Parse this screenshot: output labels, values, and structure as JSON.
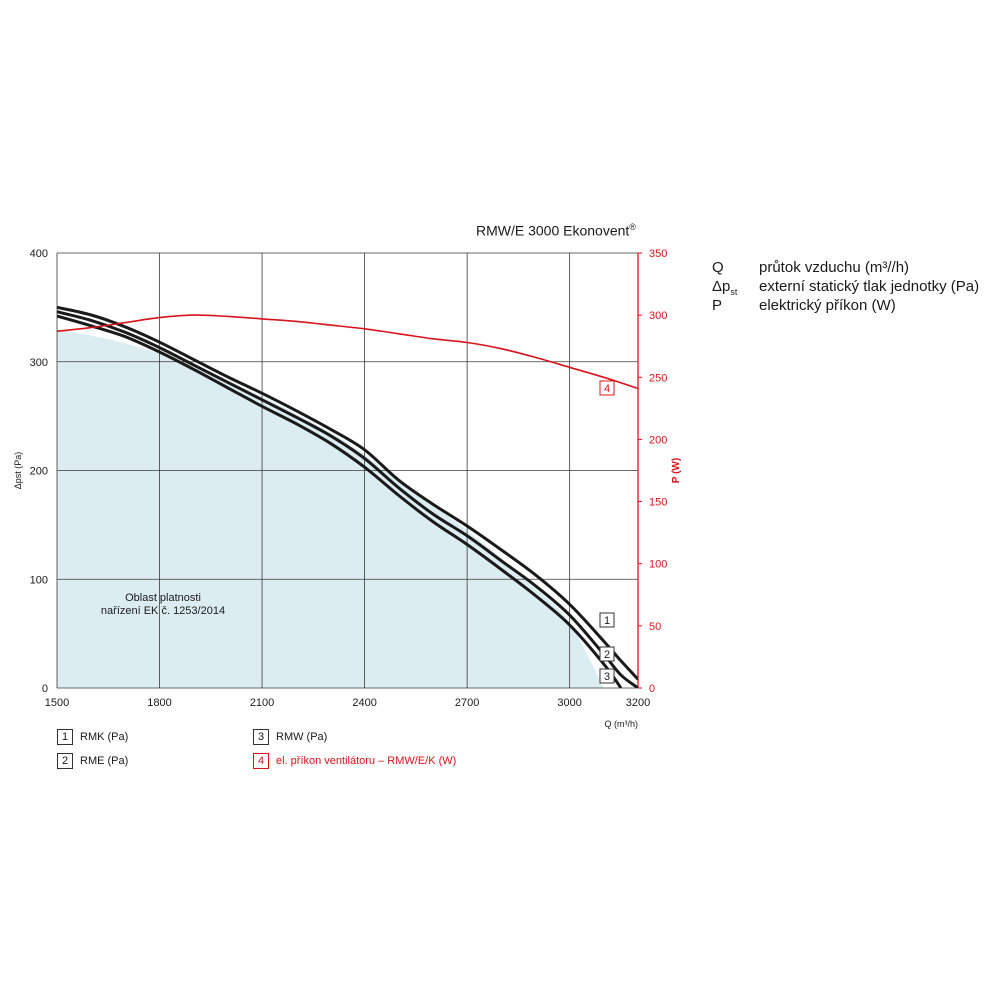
{
  "title": "RMW/E 3000 Ekonovent",
  "title_mark": "®",
  "region_label": [
    "Oblast platnosti",
    "nařízení EK č. 1253/2014"
  ],
  "description": [
    {
      "key": "Q",
      "key_sub": "",
      "text": "průtok vzduchu (m³//h)"
    },
    {
      "key": "Δp",
      "key_sub": "st",
      "text": "externí statický tlak jednotky (Pa)"
    },
    {
      "key": "P",
      "key_sub": "",
      "text": "elektrický příkon (W)"
    }
  ],
  "legend": [
    {
      "num": "1",
      "label": "RMK (Pa)",
      "color": "#1a1a1a"
    },
    {
      "num": "2",
      "label": "RME (Pa)",
      "color": "#1a1a1a"
    },
    {
      "num": "3",
      "label": "RMW (Pa)",
      "color": "#1a1a1a"
    },
    {
      "num": "4",
      "label": "el. příkon ventilátoru – RMW/E/K (W)",
      "color": "#d9141c"
    }
  ],
  "colors": {
    "pressure_line": "#1a1a1a",
    "power_line": "#d9141c",
    "region_fill": "#dcedf2",
    "grid": "#3a3a3a"
  },
  "chart_data": {
    "type": "line",
    "title": "RMW/E 3000 Ekonovent®",
    "xlabel": "Q (m³/h)",
    "ylabel": "Δpst (Pa)",
    "y2label": "P (W)",
    "xlim": [
      1500,
      3200
    ],
    "ylim": [
      0,
      400
    ],
    "y2lim": [
      0,
      350
    ],
    "xticks": [
      1500,
      1800,
      2100,
      2400,
      2700,
      3000,
      3200
    ],
    "yticks": [
      0,
      100,
      200,
      300,
      400
    ],
    "y2ticks": [
      0,
      50,
      100,
      150,
      200,
      250,
      300,
      350
    ],
    "grid": true,
    "legend_position": "bottom",
    "validity_region": {
      "label": "Oblast platnosti nařízení EK č. 1253/2014",
      "x": [
        1500,
        1700,
        1900,
        2100,
        2300,
        2400,
        2500,
        2700,
        2900,
        3000,
        3100
      ],
      "y": [
        330,
        317,
        296,
        268,
        235,
        215,
        190,
        145,
        92,
        60,
        0
      ]
    },
    "series": [
      {
        "name": "RMK (Pa)",
        "marker": "1",
        "axis": "left",
        "x": [
          1500,
          1600,
          1700,
          1800,
          1900,
          2000,
          2100,
          2200,
          2300,
          2400,
          2500,
          2600,
          2700,
          2800,
          2900,
          3000,
          3100,
          3150,
          3200
        ],
        "y": [
          350,
          343,
          332,
          318,
          302,
          286,
          271,
          255,
          238,
          219,
          191,
          169,
          149,
          127,
          104,
          77,
          43,
          25,
          8
        ]
      },
      {
        "name": "RME (Pa)",
        "marker": "2",
        "axis": "left",
        "x": [
          1500,
          1600,
          1700,
          1800,
          1900,
          2000,
          2100,
          2200,
          2300,
          2400,
          2500,
          2600,
          2700,
          2800,
          2900,
          3000,
          3100,
          3150,
          3200
        ],
        "y": [
          346,
          338,
          327,
          313,
          297,
          281,
          265,
          249,
          232,
          211,
          184,
          160,
          140,
          117,
          94,
          67,
          31,
          12,
          0
        ]
      },
      {
        "name": "RMW (Pa)",
        "marker": "3",
        "axis": "left",
        "x": [
          1500,
          1600,
          1700,
          1800,
          1900,
          2000,
          2100,
          2200,
          2300,
          2400,
          2500,
          2600,
          2700,
          2800,
          2900,
          3000,
          3100,
          3150
        ],
        "y": [
          342,
          333,
          323,
          309,
          293,
          276,
          259,
          243,
          225,
          203,
          177,
          153,
          132,
          109,
          85,
          58,
          22,
          0
        ]
      },
      {
        "name": "el. příkon ventilátoru – RMW/E/K (W)",
        "marker": "4",
        "axis": "right",
        "x": [
          1500,
          1600,
          1700,
          1800,
          1900,
          2000,
          2100,
          2200,
          2300,
          2400,
          2500,
          2600,
          2700,
          2800,
          2900,
          3000,
          3100,
          3200
        ],
        "y": [
          287,
          290,
          294,
          298,
          300,
          299,
          297,
          295,
          292,
          289,
          285,
          281,
          278,
          273,
          266,
          258,
          250,
          241
        ]
      }
    ]
  }
}
